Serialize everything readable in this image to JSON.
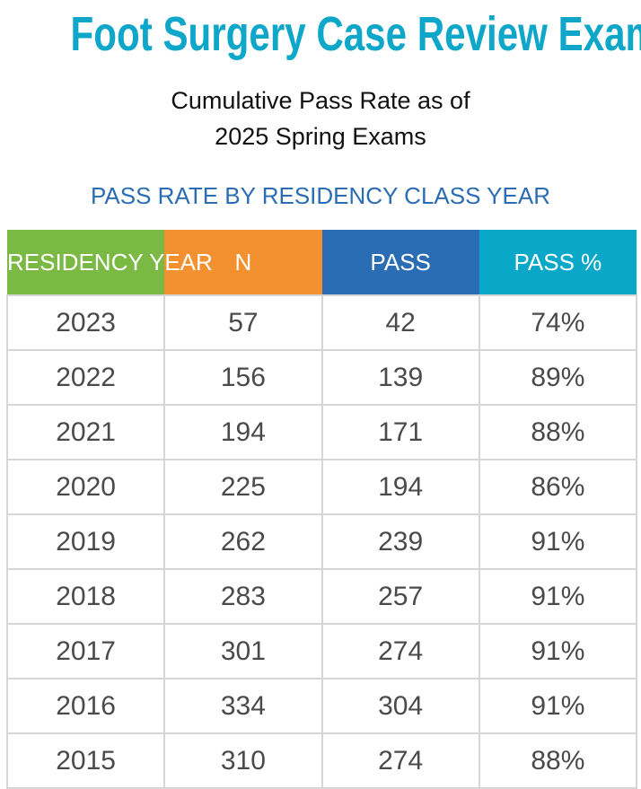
{
  "title": "Foot Surgery Case Review Exam",
  "subtitle": [
    "Cumulative Pass Rate as of",
    "2025 Spring Exams"
  ],
  "section_heading": "PASS RATE BY RESIDENCY CLASS YEAR",
  "colors": {
    "title": "#0ea6c9",
    "col1": "#7aba44",
    "col2": "#f39131",
    "col3": "#2a6db5",
    "col4": "#0aa8c8"
  },
  "table": {
    "headers": [
      "RESIDENCY YEAR",
      "N",
      "PASS",
      "PASS %"
    ],
    "rows": [
      [
        "2023",
        "57",
        "42",
        "74%"
      ],
      [
        "2022",
        "156",
        "139",
        "89%"
      ],
      [
        "2021",
        "194",
        "171",
        "88%"
      ],
      [
        "2020",
        "225",
        "194",
        "86%"
      ],
      [
        "2019",
        "262",
        "239",
        "91%"
      ],
      [
        "2018",
        "283",
        "257",
        "91%"
      ],
      [
        "2017",
        "301",
        "274",
        "91%"
      ],
      [
        "2016",
        "334",
        "304",
        "91%"
      ],
      [
        "2015",
        "310",
        "274",
        "88%"
      ]
    ]
  }
}
